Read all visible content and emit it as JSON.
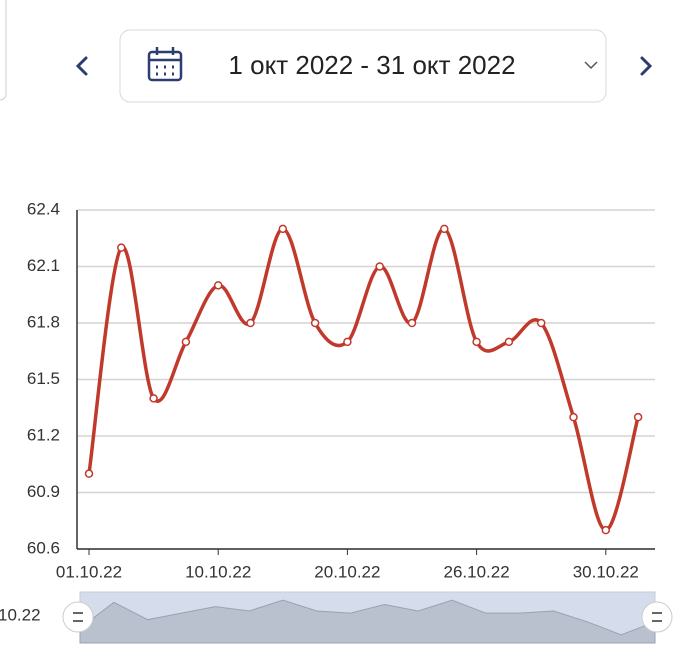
{
  "header": {
    "date_range": "1 окт 2022 - 31 окт 2022"
  },
  "chart_data": {
    "type": "line",
    "categories": [
      "01.10.22",
      null,
      null,
      null,
      "10.10.22",
      null,
      null,
      null,
      "20.10.22",
      null,
      null,
      null,
      "26.10.22",
      null,
      null,
      null,
      "30.10.22",
      null
    ],
    "series": [
      {
        "color": "#c0392b",
        "values": [
          61.0,
          62.2,
          61.4,
          61.7,
          62.0,
          61.8,
          62.3,
          61.8,
          61.7,
          62.1,
          61.8,
          62.3,
          61.7,
          61.7,
          61.8,
          61.3,
          60.7,
          61.3
        ]
      }
    ],
    "ylim": [
      60.6,
      62.4
    ],
    "yticks": [
      60.6,
      60.9,
      61.2,
      61.5,
      61.8,
      62.1,
      62.4
    ],
    "grid": true,
    "zoom_label": "10.22"
  }
}
